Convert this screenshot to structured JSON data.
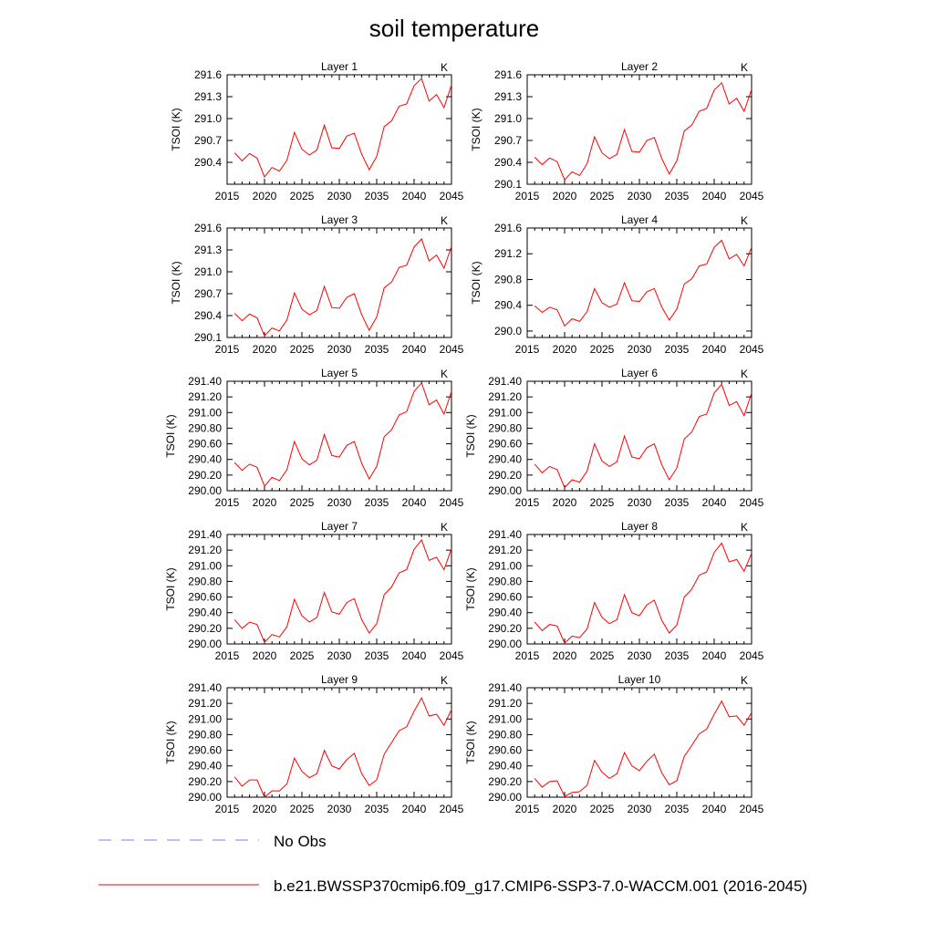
{
  "figure": {
    "title": "soil temperature"
  },
  "legend": {
    "entries": [
      {
        "label": "No Obs",
        "color": "#7b7bff",
        "style": "dashed"
      },
      {
        "label": "b.e21.BWSSP370cmip6.f09_g17.CMIP6-SSP3-7.0-WACCM.001 (2016-2045)",
        "color": "#ff0000",
        "style": "solid"
      }
    ],
    "placement": "bottom"
  },
  "chart_data": [
    {
      "type": "line",
      "title": "Layer 1",
      "units": "K",
      "ylabel": "TSOI  (K)",
      "xlim": [
        2015,
        2045
      ],
      "xticks": [
        2015,
        2020,
        2025,
        2030,
        2035,
        2040,
        2045
      ],
      "ylim": [
        290.1,
        291.6
      ],
      "yticks": [
        "290.4",
        "290.7",
        "291.0",
        "291.3",
        "291.6"
      ],
      "x": [
        2016,
        2017,
        2018,
        2019,
        2020,
        2021,
        2022,
        2023,
        2024,
        2025,
        2026,
        2027,
        2028,
        2029,
        2030,
        2031,
        2032,
        2033,
        2034,
        2035,
        2036,
        2037,
        2038,
        2039,
        2040,
        2041,
        2042,
        2043,
        2044,
        2045
      ],
      "series": [
        {
          "color": "#ff0000",
          "values": [
            290.53,
            290.42,
            290.52,
            290.46,
            290.2,
            290.33,
            290.28,
            290.43,
            290.81,
            290.58,
            290.5,
            290.57,
            290.91,
            290.6,
            290.59,
            290.76,
            290.8,
            290.51,
            290.3,
            290.48,
            290.89,
            290.97,
            291.17,
            291.2,
            291.45,
            291.55,
            291.24,
            291.33,
            291.15,
            291.46
          ]
        }
      ]
    },
    {
      "type": "line",
      "title": "Layer 2",
      "units": "K",
      "ylabel": "TSOI  (K)",
      "xlim": [
        2015,
        2045
      ],
      "xticks": [
        2015,
        2020,
        2025,
        2030,
        2035,
        2040,
        2045
      ],
      "ylim": [
        290.1,
        291.6
      ],
      "yticks": [
        "290.1",
        "290.4",
        "290.7",
        "291.0",
        "291.3",
        "291.6"
      ],
      "x": [
        2016,
        2017,
        2018,
        2019,
        2020,
        2021,
        2022,
        2023,
        2024,
        2025,
        2026,
        2027,
        2028,
        2029,
        2030,
        2031,
        2032,
        2033,
        2034,
        2035,
        2036,
        2037,
        2038,
        2039,
        2040,
        2041,
        2042,
        2043,
        2044,
        2045
      ],
      "series": [
        {
          "color": "#ff0000",
          "values": [
            290.47,
            290.37,
            290.46,
            290.41,
            290.16,
            290.27,
            290.22,
            290.38,
            290.75,
            290.53,
            290.45,
            290.51,
            290.85,
            290.55,
            290.54,
            290.7,
            290.74,
            290.45,
            290.24,
            290.42,
            290.83,
            290.91,
            291.1,
            291.14,
            291.39,
            291.49,
            291.2,
            291.28,
            291.1,
            291.4
          ]
        }
      ]
    },
    {
      "type": "line",
      "title": "Layer 3",
      "units": "K",
      "ylabel": "TSOI  (K)",
      "xlim": [
        2015,
        2045
      ],
      "xticks": [
        2015,
        2020,
        2025,
        2030,
        2035,
        2040,
        2045
      ],
      "ylim": [
        290.1,
        291.6
      ],
      "yticks": [
        "290.1",
        "290.4",
        "290.7",
        "291.0",
        "291.3",
        "291.6"
      ],
      "x": [
        2016,
        2017,
        2018,
        2019,
        2020,
        2021,
        2022,
        2023,
        2024,
        2025,
        2026,
        2027,
        2028,
        2029,
        2030,
        2031,
        2032,
        2033,
        2034,
        2035,
        2036,
        2037,
        2038,
        2039,
        2040,
        2041,
        2042,
        2043,
        2044,
        2045
      ],
      "series": [
        {
          "color": "#ff0000",
          "values": [
            290.43,
            290.33,
            290.42,
            290.37,
            290.12,
            290.23,
            290.19,
            290.34,
            290.71,
            290.49,
            290.41,
            290.47,
            290.8,
            290.51,
            290.5,
            290.65,
            290.7,
            290.41,
            290.2,
            290.38,
            290.78,
            290.86,
            291.06,
            291.09,
            291.34,
            291.45,
            291.15,
            291.23,
            291.05,
            291.35
          ]
        }
      ]
    },
    {
      "type": "line",
      "title": "Layer 4",
      "units": "K",
      "ylabel": "TSOI  (K)",
      "xlim": [
        2015,
        2045
      ],
      "xticks": [
        2015,
        2020,
        2025,
        2030,
        2035,
        2040,
        2045
      ],
      "ylim": [
        289.9,
        291.6
      ],
      "yticks": [
        "290.0",
        "290.4",
        "290.8",
        "291.2",
        "291.6"
      ],
      "x": [
        2016,
        2017,
        2018,
        2019,
        2020,
        2021,
        2022,
        2023,
        2024,
        2025,
        2026,
        2027,
        2028,
        2029,
        2030,
        2031,
        2032,
        2033,
        2034,
        2035,
        2036,
        2037,
        2038,
        2039,
        2040,
        2041,
        2042,
        2043,
        2044,
        2045
      ],
      "series": [
        {
          "color": "#ff0000",
          "values": [
            290.39,
            290.29,
            290.37,
            290.33,
            290.08,
            290.19,
            290.15,
            290.3,
            290.66,
            290.44,
            290.37,
            290.42,
            290.75,
            290.47,
            290.46,
            290.61,
            290.66,
            290.37,
            290.17,
            290.34,
            290.73,
            290.81,
            291.01,
            291.04,
            291.3,
            291.41,
            291.12,
            291.19,
            291.01,
            291.3
          ]
        }
      ]
    },
    {
      "type": "line",
      "title": "Layer 5",
      "units": "K",
      "ylabel": "TSOI  (K)",
      "xlim": [
        2015,
        2045
      ],
      "xticks": [
        2015,
        2020,
        2025,
        2030,
        2035,
        2040,
        2045
      ],
      "ylim": [
        290.0,
        291.4
      ],
      "yticks": [
        "290.00",
        "290.20",
        "290.40",
        "290.60",
        "290.80",
        "291.00",
        "291.20",
        "291.40"
      ],
      "x": [
        2016,
        2017,
        2018,
        2019,
        2020,
        2021,
        2022,
        2023,
        2024,
        2025,
        2026,
        2027,
        2028,
        2029,
        2030,
        2031,
        2032,
        2033,
        2034,
        2035,
        2036,
        2037,
        2038,
        2039,
        2040,
        2041,
        2042,
        2043,
        2044,
        2045
      ],
      "series": [
        {
          "color": "#ff0000",
          "values": [
            290.36,
            290.26,
            290.34,
            290.3,
            290.06,
            290.17,
            290.13,
            290.27,
            290.63,
            290.41,
            290.33,
            290.39,
            290.72,
            290.45,
            290.43,
            290.58,
            290.63,
            290.35,
            290.15,
            290.31,
            290.69,
            290.78,
            290.97,
            291.01,
            291.27,
            291.38,
            291.1,
            291.16,
            290.98,
            291.27
          ]
        }
      ]
    },
    {
      "type": "line",
      "title": "Layer 6",
      "units": "K",
      "ylabel": "TSOI  (K)",
      "xlim": [
        2015,
        2045
      ],
      "xticks": [
        2015,
        2020,
        2025,
        2030,
        2035,
        2040,
        2045
      ],
      "ylim": [
        290.0,
        291.4
      ],
      "yticks": [
        "290.00",
        "290.20",
        "290.40",
        "290.60",
        "290.80",
        "291.00",
        "291.20",
        "291.40"
      ],
      "x": [
        2016,
        2017,
        2018,
        2019,
        2020,
        2021,
        2022,
        2023,
        2024,
        2025,
        2026,
        2027,
        2028,
        2029,
        2030,
        2031,
        2032,
        2033,
        2034,
        2035,
        2036,
        2037,
        2038,
        2039,
        2040,
        2041,
        2042,
        2043,
        2044,
        2045
      ],
      "series": [
        {
          "color": "#ff0000",
          "values": [
            290.34,
            290.23,
            290.31,
            290.27,
            290.04,
            290.14,
            290.11,
            290.25,
            290.6,
            290.38,
            290.31,
            290.37,
            290.7,
            290.43,
            290.41,
            290.55,
            290.6,
            290.33,
            290.14,
            290.29,
            290.66,
            290.75,
            290.95,
            290.98,
            291.25,
            291.36,
            291.09,
            291.14,
            290.96,
            291.25
          ]
        }
      ]
    },
    {
      "type": "line",
      "title": "Layer 7",
      "units": "K",
      "ylabel": "TSOI  (K)",
      "xlim": [
        2015,
        2045
      ],
      "xticks": [
        2015,
        2020,
        2025,
        2030,
        2035,
        2040,
        2045
      ],
      "ylim": [
        290.0,
        291.4
      ],
      "yticks": [
        "290.00",
        "290.20",
        "290.40",
        "290.60",
        "290.80",
        "291.00",
        "291.20",
        "291.40"
      ],
      "x": [
        2016,
        2017,
        2018,
        2019,
        2020,
        2021,
        2022,
        2023,
        2024,
        2025,
        2026,
        2027,
        2028,
        2029,
        2030,
        2031,
        2032,
        2033,
        2034,
        2035,
        2036,
        2037,
        2038,
        2039,
        2040,
        2041,
        2042,
        2043,
        2044,
        2045
      ],
      "series": [
        {
          "color": "#ff0000",
          "values": [
            290.31,
            290.2,
            290.28,
            290.25,
            290.02,
            290.12,
            290.09,
            290.22,
            290.57,
            290.36,
            290.28,
            290.34,
            290.66,
            290.41,
            290.38,
            290.53,
            290.58,
            290.31,
            290.14,
            290.26,
            290.63,
            290.73,
            290.91,
            290.95,
            291.21,
            291.33,
            291.07,
            291.11,
            290.95,
            291.22
          ]
        }
      ]
    },
    {
      "type": "line",
      "title": "Layer 8",
      "units": "K",
      "ylabel": "TSOI  (K)",
      "xlim": [
        2015,
        2045
      ],
      "xticks": [
        2015,
        2020,
        2025,
        2030,
        2035,
        2040,
        2045
      ],
      "ylim": [
        290.0,
        291.4
      ],
      "yticks": [
        "290.00",
        "290.20",
        "290.40",
        "290.60",
        "290.80",
        "291.00",
        "291.20",
        "291.40"
      ],
      "x": [
        2016,
        2017,
        2018,
        2019,
        2020,
        2021,
        2022,
        2023,
        2024,
        2025,
        2026,
        2027,
        2028,
        2029,
        2030,
        2031,
        2032,
        2033,
        2034,
        2035,
        2036,
        2037,
        2038,
        2039,
        2040,
        2041,
        2042,
        2043,
        2044,
        2045
      ],
      "series": [
        {
          "color": "#ff0000",
          "values": [
            290.28,
            290.17,
            290.25,
            290.23,
            290.01,
            290.1,
            290.08,
            290.19,
            290.53,
            290.34,
            290.26,
            290.31,
            290.63,
            290.4,
            290.36,
            290.5,
            290.56,
            290.3,
            290.14,
            290.24,
            290.6,
            290.7,
            290.88,
            290.92,
            291.17,
            291.29,
            291.05,
            291.08,
            290.93,
            291.16
          ]
        }
      ]
    },
    {
      "type": "line",
      "title": "Layer 9",
      "units": "K",
      "ylabel": "TSOI  (K)",
      "xlim": [
        2015,
        2045
      ],
      "xticks": [
        2015,
        2020,
        2025,
        2030,
        2035,
        2040,
        2045
      ],
      "ylim": [
        290.0,
        291.4
      ],
      "yticks": [
        "290.00",
        "290.20",
        "290.40",
        "290.60",
        "290.80",
        "291.00",
        "291.20",
        "291.40"
      ],
      "x": [
        2016,
        2017,
        2018,
        2019,
        2020,
        2021,
        2022,
        2023,
        2024,
        2025,
        2026,
        2027,
        2028,
        2029,
        2030,
        2031,
        2032,
        2033,
        2034,
        2035,
        2036,
        2037,
        2038,
        2039,
        2040,
        2041,
        2042,
        2043,
        2044,
        2045
      ],
      "series": [
        {
          "color": "#ff0000",
          "values": [
            290.26,
            290.14,
            290.22,
            290.22,
            290.0,
            290.08,
            290.08,
            290.17,
            290.5,
            290.33,
            290.25,
            290.3,
            290.6,
            290.4,
            290.36,
            290.48,
            290.56,
            290.3,
            290.15,
            290.22,
            290.55,
            290.7,
            290.85,
            290.9,
            291.1,
            291.27,
            291.04,
            291.06,
            290.92,
            291.12
          ]
        }
      ]
    },
    {
      "type": "line",
      "title": "Layer 10",
      "units": "K",
      "ylabel": "TSOI  (K)",
      "xlim": [
        2015,
        2045
      ],
      "xticks": [
        2015,
        2020,
        2025,
        2030,
        2035,
        2040,
        2045
      ],
      "ylim": [
        290.0,
        291.4
      ],
      "yticks": [
        "290.00",
        "290.20",
        "290.40",
        "290.60",
        "290.80",
        "291.00",
        "291.20",
        "291.40"
      ],
      "x": [
        2016,
        2017,
        2018,
        2019,
        2020,
        2021,
        2022,
        2023,
        2024,
        2025,
        2026,
        2027,
        2028,
        2029,
        2030,
        2031,
        2032,
        2033,
        2034,
        2035,
        2036,
        2037,
        2038,
        2039,
        2040,
        2041,
        2042,
        2043,
        2044,
        2045
      ],
      "series": [
        {
          "color": "#ff0000",
          "values": [
            290.24,
            290.13,
            290.2,
            290.21,
            290.01,
            290.06,
            290.07,
            290.15,
            290.47,
            290.32,
            290.24,
            290.3,
            290.57,
            290.4,
            290.34,
            290.46,
            290.55,
            290.31,
            290.16,
            290.21,
            290.52,
            290.66,
            290.81,
            290.87,
            291.06,
            291.23,
            291.03,
            291.04,
            290.92,
            291.08
          ]
        }
      ]
    }
  ]
}
